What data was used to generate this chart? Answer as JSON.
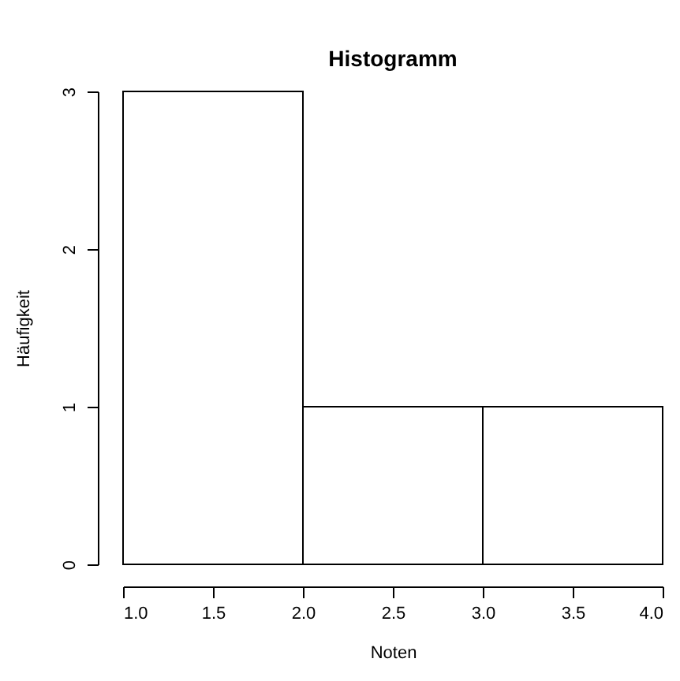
{
  "chart_data": {
    "type": "histogram",
    "title": "Histogramm",
    "xlabel": "Noten",
    "ylabel": "Häufigkeit",
    "bins": [
      1,
      2,
      3,
      4
    ],
    "values": [
      3,
      1,
      1
    ],
    "color": "#ffffff",
    "xlim": [
      1,
      4
    ],
    "ylim": [
      0,
      3
    ],
    "xticks": [
      {
        "value": 1,
        "label": "1.0"
      },
      {
        "value": 1.5,
        "label": "1.5"
      },
      {
        "value": 2,
        "label": "2.0"
      },
      {
        "value": 2.5,
        "label": "2.5"
      },
      {
        "value": 3,
        "label": "3.0"
      },
      {
        "value": 3.5,
        "label": "3.5"
      },
      {
        "value": 4,
        "label": "4.0"
      }
    ],
    "yticks": [
      0,
      1,
      2,
      3
    ],
    "grid": false
  }
}
